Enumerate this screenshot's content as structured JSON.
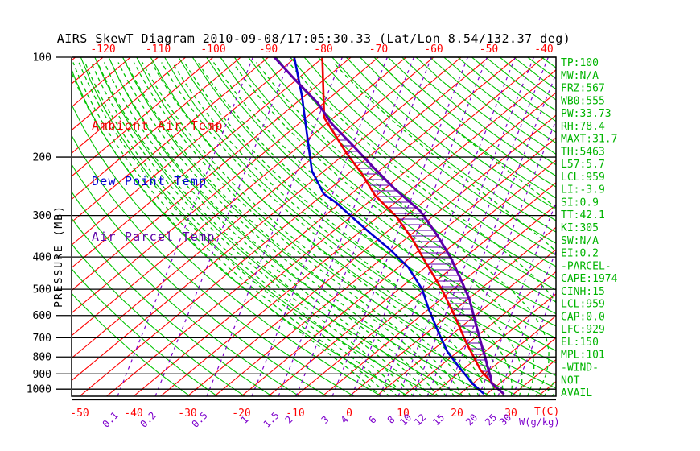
{
  "title": "AIRS SkewT Diagram 2010-09-08/17:05:30.33 (Lat/Lon 8.54/132.37 deg)",
  "colors": {
    "background": "#ffffff",
    "frame": "#000000",
    "isotherm": "#ff0000",
    "dry_adiabat": "#00c300",
    "moist_adiabat": "#00c300",
    "mixing_ratio": "#7d00cc",
    "ambient": "#ee0000",
    "dew_point": "#0000d0",
    "parcel": "#5c00a8",
    "hatch": "#5c00a8",
    "stats_text": "#00b400",
    "tick_text_red": "#ff0000",
    "pressure_text": "#000000"
  },
  "legend": {
    "items": [
      {
        "label": "Ambient Air Temp",
        "color": "#ee0000"
      },
      {
        "label": "Dew Point Temp",
        "color": "#0000d0"
      },
      {
        "label": "Air Parcel Temp",
        "color": "#5c00a8"
      }
    ]
  },
  "stats": {
    "items": [
      "TP:100",
      "MW:N/A",
      "FRZ:567",
      "WB0:555",
      "PW:33.73",
      "RH:78.4",
      "MAXT:31.7",
      "TH:5463",
      "L57:5.7",
      "LCL:959",
      "LI:-3.9",
      "SI:0.9",
      "TT:42.1",
      "KI:305",
      "SW:N/A",
      "EI:0.2",
      "-PARCEL-",
      "CAPE:1974",
      "CINH:15",
      "LCL:959",
      "CAP:0.0",
      "LFC:929",
      "EL:150",
      "MPL:101",
      "-WIND-",
      "NOT",
      "AVAIL"
    ]
  },
  "chart_data": {
    "type": "line",
    "subtype": "skewt-log-p",
    "title": "AIRS SkewT Diagram 2010-09-08/17:05:30.33 (Lat/Lon 8.54/132.37 deg)",
    "pressure_axis": {
      "label": "PRESSURE (MB)",
      "ticks": [
        100,
        200,
        300,
        400,
        500,
        600,
        700,
        800,
        900,
        1000
      ],
      "range": [
        100,
        1050
      ],
      "scale": "log"
    },
    "temp_axis": {
      "label": "T(C)",
      "top_ticks": [
        -120,
        -110,
        -100,
        -90,
        -80,
        -70,
        -60,
        -50,
        -40
      ],
      "bottom_ticks": [
        -50,
        -40,
        -30,
        -20,
        -10,
        0,
        10,
        20,
        30
      ],
      "unit": "C"
    },
    "mixing_axis": {
      "label": "W(g/kg)",
      "ticks": [
        0.1,
        0.2,
        0.5,
        1,
        1.5,
        2,
        3,
        4,
        6,
        8,
        10,
        12,
        15,
        20,
        25,
        30
      ],
      "line_x": [
        146,
        193,
        257,
        313,
        346,
        368,
        413,
        437,
        472,
        495,
        513,
        531,
        554,
        595,
        619,
        637
      ]
    },
    "background": {
      "isotherm_range": [
        -160,
        50
      ],
      "isotherm_step": 5,
      "dry_adiabat_theta_range": [
        240,
        455
      ],
      "dry_adiabat_theta_step": 5,
      "moist_adiabat_surface_temp_range": [
        6,
        39
      ],
      "moist_adiabat_surface_temp_step": 1.5,
      "grid": "on"
    },
    "hatch": {
      "between": [
        "Ambient Air Temp",
        "Air Parcel Temp"
      ],
      "pressure_range_mb": [
        150,
        929
      ],
      "meaning": "CAPE region"
    },
    "series": [
      {
        "name": "Ambient Air Temp",
        "color": "#ee0000",
        "width": 2.6,
        "points_p_t": [
          [
            100,
            -80.7
          ],
          [
            152,
            -66.9
          ],
          [
            194,
            -55.0
          ],
          [
            224,
            -47.5
          ],
          [
            261,
            -40.1
          ],
          [
            302,
            -31.5
          ],
          [
            353,
            -23.5
          ],
          [
            417,
            -15.6
          ],
          [
            504,
            -6.5
          ],
          [
            598,
            1.2
          ],
          [
            726,
            9.7
          ],
          [
            877,
            18.4
          ],
          [
            984,
            24.9
          ],
          [
            1030,
            27.7
          ]
        ]
      },
      {
        "name": "Dew Point Temp",
        "color": "#0000d0",
        "width": 2.6,
        "points_p_t": [
          [
            100,
            -85.9
          ],
          [
            131,
            -75.8
          ],
          [
            172,
            -66.1
          ],
          [
            220,
            -57.3
          ],
          [
            258,
            -50.0
          ],
          [
            274,
            -45.8
          ],
          [
            305,
            -39.2
          ],
          [
            339,
            -32.6
          ],
          [
            379,
            -25.4
          ],
          [
            430,
            -17.9
          ],
          [
            500,
            -10.5
          ],
          [
            569,
            -5.2
          ],
          [
            677,
            2.3
          ],
          [
            773,
            8.2
          ],
          [
            855,
            13.5
          ],
          [
            961,
            19.8
          ],
          [
            1030,
            24.1
          ]
        ]
      },
      {
        "name": "Air Parcel Temp",
        "color": "#5c00a8",
        "width": 3,
        "points_p_t": [
          [
            100,
            -89.6
          ],
          [
            118,
            -80.2
          ],
          [
            137,
            -71.5
          ],
          [
            159,
            -64.0
          ],
          [
            185,
            -55.2
          ],
          [
            215,
            -46.6
          ],
          [
            249,
            -38.0
          ],
          [
            291,
            -28.2
          ],
          [
            344,
            -19.7
          ],
          [
            402,
            -12.2
          ],
          [
            466,
            -5.6
          ],
          [
            537,
            0.6
          ],
          [
            625,
            6.5
          ],
          [
            726,
            12.4
          ],
          [
            811,
            16.8
          ],
          [
            882,
            20.1
          ],
          [
            922,
            21.9
          ],
          [
            959,
            23.3
          ],
          [
            997,
            25.7
          ],
          [
            1030,
            27.8
          ]
        ]
      }
    ]
  }
}
